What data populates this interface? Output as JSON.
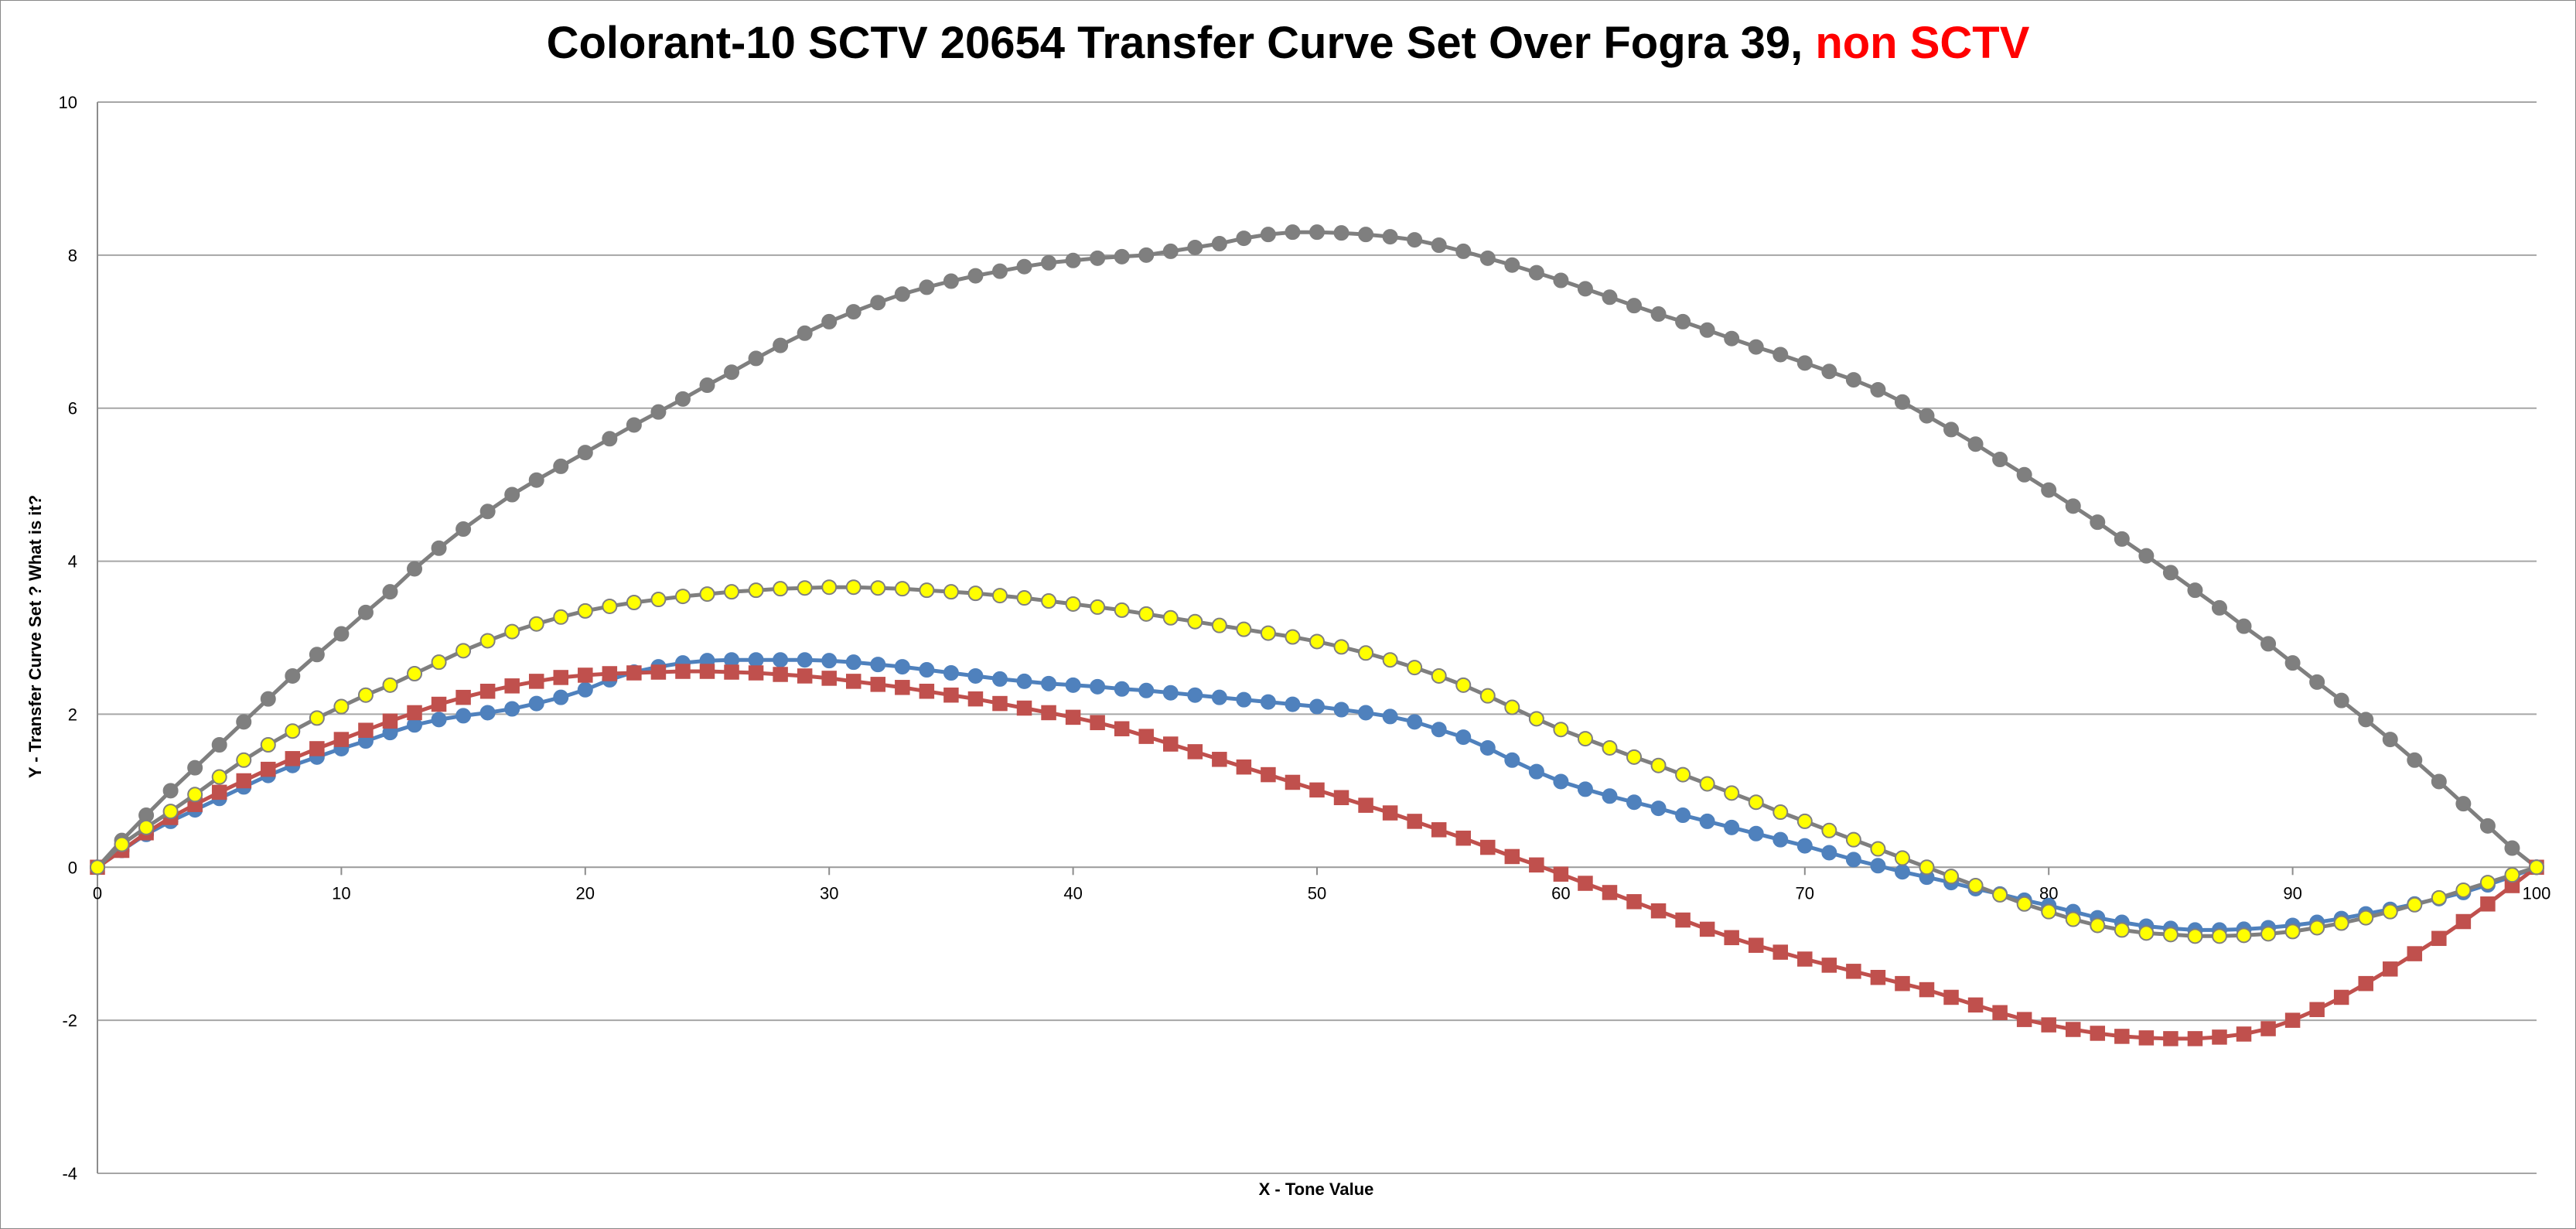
{
  "chart_data": {
    "type": "line",
    "title": "Colorant-10 SCTV 20654 Transfer Curve Set Over Fogra 39,",
    "title_highlight": "non SCTV",
    "title_highlight_color": "#ff0000",
    "xlabel": "X - Tone Value",
    "ylabel": "Y - Transfer Curve Set ?    What is it?",
    "xlim": [
      0,
      100
    ],
    "ylim": [
      -4,
      10
    ],
    "xticks": [
      0,
      10,
      20,
      30,
      40,
      50,
      60,
      70,
      80,
      90,
      100
    ],
    "yticks": [
      -4,
      -2,
      0,
      2,
      4,
      6,
      8,
      10
    ],
    "grid": "horizontal",
    "legend": "none",
    "x_step": 1,
    "series": [
      {
        "color": "#7f7f7f",
        "marker": "circle",
        "marker_fill": "#7f7f7f",
        "values": [
          0.0,
          0.35,
          0.68,
          1.0,
          1.3,
          1.6,
          1.9,
          2.2,
          2.5,
          2.78,
          3.05,
          3.33,
          3.6,
          3.9,
          4.17,
          4.42,
          4.65,
          4.87,
          5.06,
          5.24,
          5.42,
          5.6,
          5.78,
          5.95,
          6.12,
          6.3,
          6.47,
          6.65,
          6.82,
          6.98,
          7.13,
          7.26,
          7.38,
          7.49,
          7.58,
          7.66,
          7.73,
          7.79,
          7.85,
          7.9,
          7.93,
          7.96,
          7.98,
          8.0,
          8.05,
          8.1,
          8.15,
          8.22,
          8.27,
          8.3,
          8.3,
          8.29,
          8.27,
          8.24,
          8.2,
          8.13,
          8.05,
          7.96,
          7.87,
          7.77,
          7.67,
          7.56,
          7.45,
          7.34,
          7.23,
          7.13,
          7.02,
          6.91,
          6.8,
          6.7,
          6.59,
          6.48,
          6.37,
          6.24,
          6.08,
          5.9,
          5.72,
          5.53,
          5.33,
          5.13,
          4.93,
          4.72,
          4.51,
          4.29,
          4.07,
          3.85,
          3.62,
          3.39,
          3.15,
          2.92,
          2.67,
          2.42,
          2.18,
          1.93,
          1.67,
          1.4,
          1.12,
          0.83,
          0.54,
          0.25,
          0.0
        ]
      },
      {
        "color": "#4f81bd",
        "marker": "circle",
        "marker_fill": "#4f81bd",
        "values": [
          0.0,
          0.22,
          0.43,
          0.6,
          0.75,
          0.9,
          1.05,
          1.2,
          1.33,
          1.44,
          1.55,
          1.65,
          1.76,
          1.86,
          1.93,
          1.98,
          2.02,
          2.07,
          2.14,
          2.22,
          2.32,
          2.45,
          2.55,
          2.62,
          2.67,
          2.7,
          2.71,
          2.71,
          2.71,
          2.71,
          2.7,
          2.68,
          2.65,
          2.62,
          2.58,
          2.54,
          2.5,
          2.46,
          2.43,
          2.4,
          2.38,
          2.36,
          2.33,
          2.31,
          2.28,
          2.25,
          2.22,
          2.19,
          2.16,
          2.13,
          2.1,
          2.06,
          2.02,
          1.97,
          1.9,
          1.8,
          1.7,
          1.56,
          1.4,
          1.25,
          1.12,
          1.02,
          0.93,
          0.85,
          0.77,
          0.68,
          0.6,
          0.52,
          0.44,
          0.36,
          0.28,
          0.19,
          0.1,
          0.02,
          -0.06,
          -0.13,
          -0.2,
          -0.28,
          -0.35,
          -0.43,
          -0.5,
          -0.58,
          -0.66,
          -0.72,
          -0.77,
          -0.8,
          -0.82,
          -0.82,
          -0.81,
          -0.79,
          -0.76,
          -0.72,
          -0.67,
          -0.61,
          -0.55,
          -0.48,
          -0.41,
          -0.33,
          -0.23,
          -0.12,
          0.0
        ]
      },
      {
        "color": "#c0504d",
        "marker": "square",
        "marker_fill": "#c0504d",
        "values": [
          0.0,
          0.22,
          0.45,
          0.65,
          0.82,
          0.98,
          1.13,
          1.28,
          1.42,
          1.55,
          1.67,
          1.79,
          1.91,
          2.02,
          2.13,
          2.22,
          2.3,
          2.37,
          2.43,
          2.48,
          2.51,
          2.53,
          2.54,
          2.55,
          2.56,
          2.56,
          2.55,
          2.54,
          2.52,
          2.5,
          2.47,
          2.43,
          2.39,
          2.35,
          2.3,
          2.25,
          2.2,
          2.14,
          2.08,
          2.02,
          1.96,
          1.89,
          1.81,
          1.71,
          1.61,
          1.51,
          1.41,
          1.31,
          1.21,
          1.11,
          1.01,
          0.91,
          0.81,
          0.71,
          0.6,
          0.49,
          0.38,
          0.26,
          0.14,
          0.03,
          -0.09,
          -0.21,
          -0.33,
          -0.45,
          -0.57,
          -0.69,
          -0.81,
          -0.92,
          -1.02,
          -1.11,
          -1.2,
          -1.28,
          -1.36,
          -1.44,
          -1.52,
          -1.6,
          -1.7,
          -1.8,
          -1.9,
          -1.99,
          -2.06,
          -2.12,
          -2.17,
          -2.21,
          -2.23,
          -2.24,
          -2.24,
          -2.22,
          -2.18,
          -2.11,
          -2.0,
          -1.86,
          -1.7,
          -1.52,
          -1.33,
          -1.13,
          -0.93,
          -0.71,
          -0.48,
          -0.24,
          0.0
        ]
      },
      {
        "color": "#7f7f7f",
        "marker": "circle",
        "marker_fill": "#ffff00",
        "values": [
          0.0,
          0.3,
          0.52,
          0.73,
          0.95,
          1.18,
          1.4,
          1.6,
          1.78,
          1.95,
          2.1,
          2.25,
          2.38,
          2.53,
          2.68,
          2.83,
          2.96,
          3.08,
          3.18,
          3.27,
          3.35,
          3.41,
          3.46,
          3.5,
          3.54,
          3.57,
          3.6,
          3.62,
          3.64,
          3.65,
          3.66,
          3.66,
          3.65,
          3.64,
          3.62,
          3.6,
          3.58,
          3.55,
          3.52,
          3.48,
          3.44,
          3.4,
          3.36,
          3.31,
          3.26,
          3.21,
          3.16,
          3.11,
          3.06,
          3.01,
          2.95,
          2.88,
          2.8,
          2.71,
          2.61,
          2.5,
          2.38,
          2.24,
          2.09,
          1.94,
          1.8,
          1.68,
          1.56,
          1.44,
          1.33,
          1.21,
          1.09,
          0.97,
          0.85,
          0.72,
          0.6,
          0.48,
          0.36,
          0.24,
          0.12,
          0.0,
          -0.12,
          -0.24,
          -0.36,
          -0.48,
          -0.58,
          -0.68,
          -0.76,
          -0.82,
          -0.86,
          -0.88,
          -0.9,
          -0.9,
          -0.89,
          -0.87,
          -0.84,
          -0.79,
          -0.73,
          -0.66,
          -0.58,
          -0.49,
          -0.4,
          -0.3,
          -0.2,
          -0.1,
          0.0
        ]
      }
    ]
  }
}
